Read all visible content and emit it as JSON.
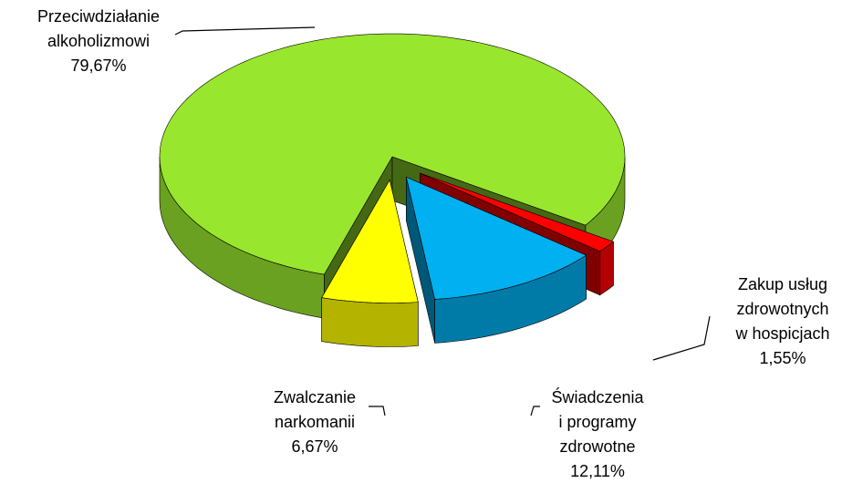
{
  "chart_data": {
    "type": "pie3d",
    "categories": [
      "Przeciwdziałanie\nalkoholizmowi",
      "Zwalczanie\nnarkomanii",
      "Świadczenia\ni programy\nzdrowotne",
      "Zakup usług\nzdrowotnych\nw hospicjach"
    ],
    "values": [
      79.67,
      6.67,
      12.11,
      1.55
    ],
    "value_labels": [
      "79,67%",
      "6,67%",
      "12,11%",
      "1,55%"
    ],
    "colors": [
      "#99e62e",
      "#ffff00",
      "#00b0f0",
      "#ff0000"
    ]
  }
}
